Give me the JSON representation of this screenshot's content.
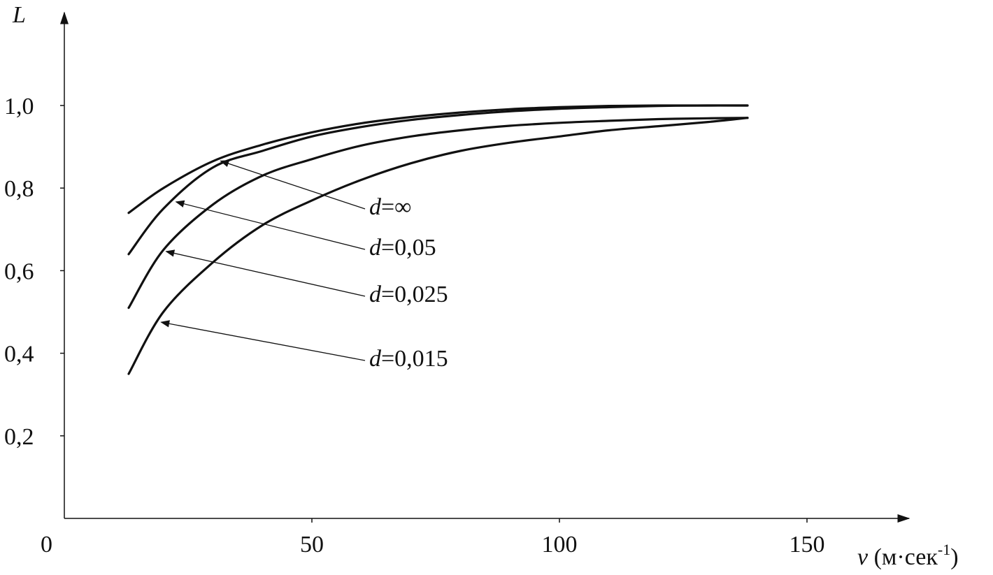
{
  "chart_data": {
    "type": "line",
    "ylabel": "L",
    "xlabel": "v (м·сек⁻¹)",
    "xlabel_parts": {
      "var": "v",
      "unit_open": " (м·сек",
      "unit_sup": "-1",
      "unit_close": ")"
    },
    "x_ticks": [
      "0",
      "50",
      "100",
      "150"
    ],
    "x_tick_values": [
      0,
      50,
      100,
      150
    ],
    "y_ticks": [
      "0,2",
      "0,4",
      "0,6",
      "0,8",
      "1,0"
    ],
    "y_tick_values": [
      0.2,
      0.4,
      0.6,
      0.8,
      1.0
    ],
    "xlim": [
      0,
      170
    ],
    "ylim": [
      0,
      1.2
    ],
    "grid": false,
    "series": [
      {
        "name": "d=∞",
        "label_var": "d",
        "label_rest": "=∞",
        "arrow_to_x": 31,
        "x": [
          13,
          20,
          30,
          40,
          50,
          60,
          70,
          80,
          90,
          100,
          110,
          120,
          130,
          138
        ],
        "y": [
          0.74,
          0.8,
          0.865,
          0.905,
          0.935,
          0.957,
          0.972,
          0.983,
          0.991,
          0.996,
          0.999,
          1.0,
          1.0,
          1.0
        ]
      },
      {
        "name": "d=0,05",
        "label_var": "d",
        "label_rest": "=0,05",
        "arrow_to_x": 22,
        "x": [
          13,
          20,
          30,
          40,
          50,
          60,
          70,
          80,
          90,
          100,
          110,
          120,
          130,
          138
        ],
        "y": [
          0.64,
          0.75,
          0.85,
          0.89,
          0.925,
          0.948,
          0.965,
          0.977,
          0.986,
          0.992,
          0.996,
          0.999,
          1.0,
          1.0
        ]
      },
      {
        "name": "d=0,025",
        "label_var": "d",
        "label_rest": "=0,025",
        "arrow_to_x": 20,
        "x": [
          13,
          20,
          30,
          40,
          50,
          60,
          70,
          80,
          90,
          100,
          110,
          120,
          130,
          138
        ],
        "y": [
          0.51,
          0.65,
          0.76,
          0.83,
          0.87,
          0.903,
          0.925,
          0.94,
          0.951,
          0.958,
          0.963,
          0.967,
          0.969,
          0.97
        ]
      },
      {
        "name": "d=0,015",
        "label_var": "d",
        "label_rest": "=0,015",
        "arrow_to_x": 19,
        "x": [
          13,
          20,
          30,
          40,
          50,
          60,
          70,
          80,
          90,
          100,
          110,
          120,
          130,
          138
        ],
        "y": [
          0.35,
          0.5,
          0.62,
          0.71,
          0.77,
          0.82,
          0.86,
          0.89,
          0.91,
          0.925,
          0.94,
          0.95,
          0.96,
          0.97
        ]
      }
    ]
  }
}
